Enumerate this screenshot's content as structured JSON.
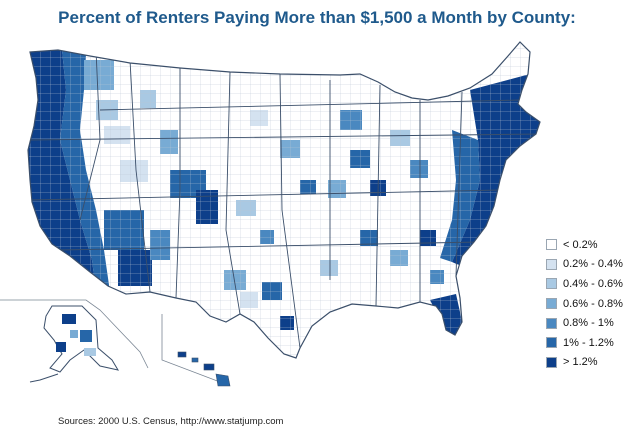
{
  "title": "Percent of Renters Paying More than $1,500 a Month by County:",
  "source": "Sources: 2000 U.S. Census, http://www.statjump.com",
  "legend": [
    {
      "label": "< 0.2%",
      "color": "#ffffff"
    },
    {
      "label": "0.2% - 0.4%",
      "color": "#d4e2f0"
    },
    {
      "label": "0.4% - 0.6%",
      "color": "#a9c9e3"
    },
    {
      "label": "0.6% - 0.8%",
      "color": "#78abd4"
    },
    {
      "label": "0.8% - 1%",
      "color": "#4a88c0"
    },
    {
      "label": "1% - 1.2%",
      "color": "#2666a8"
    },
    {
      "label": "> 1.2%",
      "color": "#0d3f8a"
    }
  ],
  "colors": {
    "title": "#1f5a8c",
    "outline": "#3b4f6a",
    "county_line": "#b9c6d4"
  }
}
